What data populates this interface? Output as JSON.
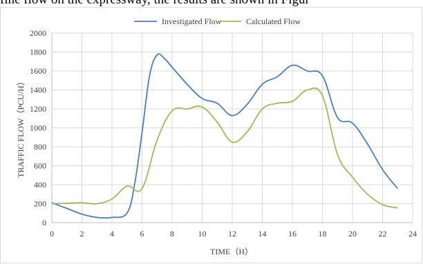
{
  "page_text": "fine flow on the expressway, the results are shown in Figur",
  "chart_data": {
    "type": "line",
    "title": "",
    "xlabel": "TIME（H）",
    "ylabel": "TRAFFIC FLOW（PCU/H）",
    "xlim": [
      0,
      24
    ],
    "ylim": [
      0,
      2000
    ],
    "x_ticks": [
      "0",
      "2",
      "4",
      "6",
      "8",
      "10",
      "12",
      "14",
      "16",
      "18",
      "20",
      "22",
      "24"
    ],
    "y_ticks": [
      "0",
      "200",
      "400",
      "600",
      "800",
      "1000",
      "1200",
      "1400",
      "1600",
      "1800",
      "2000"
    ],
    "grid": true,
    "legend_position": "top",
    "series": [
      {
        "name": "Investigated Flow",
        "color": "#4a7ebb",
        "x": [
          0,
          1,
          2,
          3,
          4,
          5,
          5.5,
          6,
          6.5,
          7,
          7.5,
          8,
          9,
          10,
          11,
          12,
          13,
          14,
          15,
          16,
          17,
          18,
          19,
          20,
          21,
          22,
          23
        ],
        "y": [
          210,
          150,
          90,
          55,
          55,
          100,
          400,
          950,
          1550,
          1770,
          1730,
          1640,
          1460,
          1310,
          1260,
          1130,
          1250,
          1460,
          1540,
          1660,
          1600,
          1550,
          1110,
          1050,
          830,
          560,
          360
        ]
      },
      {
        "name": "Calculated Flow",
        "color": "#9bbb59",
        "x": [
          0,
          1,
          2,
          3,
          4,
          5,
          6,
          7,
          8,
          9,
          10,
          11,
          12,
          13,
          14,
          15,
          16,
          17,
          18,
          19,
          20,
          21,
          22,
          23
        ],
        "y": [
          200,
          205,
          210,
          200,
          250,
          385,
          360,
          870,
          1180,
          1200,
          1220,
          1060,
          850,
          960,
          1200,
          1260,
          1280,
          1400,
          1340,
          720,
          480,
          300,
          190,
          155
        ]
      }
    ]
  }
}
